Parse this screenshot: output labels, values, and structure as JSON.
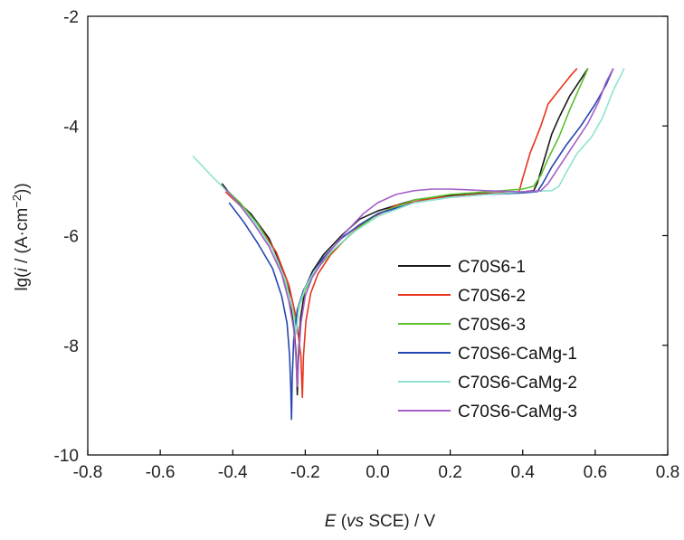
{
  "chart_data": {
    "type": "line",
    "title": "",
    "xlabel": {
      "italic": "E",
      "pre": " (",
      "italic2": "vs",
      "post": " SCE) / V"
    },
    "ylabel": {
      "pre": "lg(",
      "italic": "i",
      "mid": " / (A·cm",
      "sup": "−2",
      "post": "))"
    },
    "xlim": [
      -0.8,
      0.8
    ],
    "ylim": [
      -10,
      -2
    ],
    "xticks": [
      "-0.8",
      "-0.6",
      "-0.4",
      "-0.2",
      "0.0",
      "0.2",
      "0.4",
      "0.6",
      "0.8"
    ],
    "yticks": [
      "-10",
      "-8",
      "-6",
      "-4",
      "-2"
    ],
    "grid": false,
    "legend_position": "center-right",
    "series": [
      {
        "name": "C70S6-1",
        "color": "#1a1a1a",
        "points": [
          [
            -0.43,
            -5.05
          ],
          [
            -0.4,
            -5.3
          ],
          [
            -0.35,
            -5.6
          ],
          [
            -0.3,
            -6.05
          ],
          [
            -0.27,
            -6.5
          ],
          [
            -0.245,
            -7.0
          ],
          [
            -0.232,
            -7.6
          ],
          [
            -0.225,
            -8.2
          ],
          [
            -0.222,
            -8.9
          ],
          [
            -0.219,
            -8.2
          ],
          [
            -0.213,
            -7.5
          ],
          [
            -0.2,
            -6.95
          ],
          [
            -0.18,
            -6.65
          ],
          [
            -0.15,
            -6.35
          ],
          [
            -0.1,
            -6.0
          ],
          [
            -0.05,
            -5.7
          ],
          [
            0.0,
            -5.55
          ],
          [
            0.1,
            -5.35
          ],
          [
            0.2,
            -5.27
          ],
          [
            0.3,
            -5.23
          ],
          [
            0.4,
            -5.2
          ],
          [
            0.43,
            -5.18
          ],
          [
            0.44,
            -5.05
          ],
          [
            0.46,
            -4.6
          ],
          [
            0.48,
            -4.15
          ],
          [
            0.5,
            -3.85
          ],
          [
            0.53,
            -3.45
          ],
          [
            0.56,
            -3.15
          ],
          [
            0.58,
            -2.95
          ]
        ]
      },
      {
        "name": "C70S6-2",
        "color": "#e8341c",
        "points": [
          [
            -0.42,
            -5.2
          ],
          [
            -0.38,
            -5.45
          ],
          [
            -0.33,
            -5.8
          ],
          [
            -0.28,
            -6.3
          ],
          [
            -0.245,
            -6.9
          ],
          [
            -0.225,
            -7.5
          ],
          [
            -0.212,
            -8.2
          ],
          [
            -0.208,
            -8.95
          ],
          [
            -0.205,
            -8.2
          ],
          [
            -0.198,
            -7.55
          ],
          [
            -0.185,
            -7.05
          ],
          [
            -0.165,
            -6.7
          ],
          [
            -0.13,
            -6.35
          ],
          [
            -0.08,
            -6.0
          ],
          [
            -0.03,
            -5.72
          ],
          [
            0.05,
            -5.45
          ],
          [
            0.15,
            -5.32
          ],
          [
            0.25,
            -5.26
          ],
          [
            0.35,
            -5.22
          ],
          [
            0.39,
            -5.2
          ],
          [
            0.4,
            -4.95
          ],
          [
            0.42,
            -4.5
          ],
          [
            0.45,
            -4.0
          ],
          [
            0.47,
            -3.6
          ],
          [
            0.5,
            -3.35
          ],
          [
            0.53,
            -3.1
          ],
          [
            0.55,
            -2.95
          ]
        ]
      },
      {
        "name": "C70S6-3",
        "color": "#5cc02f",
        "points": [
          [
            -0.42,
            -5.15
          ],
          [
            -0.38,
            -5.4
          ],
          [
            -0.33,
            -5.8
          ],
          [
            -0.29,
            -6.25
          ],
          [
            -0.26,
            -6.75
          ],
          [
            -0.24,
            -7.2
          ],
          [
            -0.225,
            -7.6
          ],
          [
            -0.215,
            -7.25
          ],
          [
            -0.2,
            -7.0
          ],
          [
            -0.185,
            -6.8
          ],
          [
            -0.16,
            -6.55
          ],
          [
            -0.12,
            -6.25
          ],
          [
            -0.06,
            -5.9
          ],
          [
            0.0,
            -5.6
          ],
          [
            0.1,
            -5.35
          ],
          [
            0.2,
            -5.25
          ],
          [
            0.3,
            -5.2
          ],
          [
            0.4,
            -5.15
          ],
          [
            0.43,
            -5.1
          ],
          [
            0.45,
            -4.9
          ],
          [
            0.47,
            -4.6
          ],
          [
            0.5,
            -4.2
          ],
          [
            0.53,
            -3.7
          ],
          [
            0.56,
            -3.25
          ],
          [
            0.58,
            -2.95
          ]
        ]
      },
      {
        "name": "C70S6-CaMg-1",
        "color": "#2546b0",
        "points": [
          [
            -0.41,
            -5.4
          ],
          [
            -0.37,
            -5.75
          ],
          [
            -0.33,
            -6.15
          ],
          [
            -0.29,
            -6.6
          ],
          [
            -0.265,
            -7.1
          ],
          [
            -0.25,
            -7.6
          ],
          [
            -0.243,
            -8.2
          ],
          [
            -0.24,
            -8.8
          ],
          [
            -0.238,
            -9.35
          ],
          [
            -0.236,
            -8.6
          ],
          [
            -0.232,
            -7.9
          ],
          [
            -0.222,
            -7.35
          ],
          [
            -0.205,
            -7.0
          ],
          [
            -0.185,
            -6.75
          ],
          [
            -0.15,
            -6.4
          ],
          [
            -0.1,
            -6.05
          ],
          [
            -0.05,
            -5.8
          ],
          [
            0.0,
            -5.6
          ],
          [
            0.1,
            -5.4
          ],
          [
            0.2,
            -5.3
          ],
          [
            0.3,
            -5.25
          ],
          [
            0.4,
            -5.22
          ],
          [
            0.44,
            -5.2
          ],
          [
            0.455,
            -5.05
          ],
          [
            0.48,
            -4.75
          ],
          [
            0.52,
            -4.35
          ],
          [
            0.56,
            -4.0
          ],
          [
            0.6,
            -3.6
          ],
          [
            0.63,
            -3.25
          ],
          [
            0.65,
            -2.95
          ]
        ]
      },
      {
        "name": "C70S6-CaMg-2",
        "color": "#8ee4cf",
        "points": [
          [
            -0.51,
            -4.55
          ],
          [
            -0.46,
            -4.9
          ],
          [
            -0.4,
            -5.3
          ],
          [
            -0.34,
            -5.75
          ],
          [
            -0.29,
            -6.25
          ],
          [
            -0.255,
            -6.8
          ],
          [
            -0.235,
            -7.35
          ],
          [
            -0.225,
            -7.8
          ],
          [
            -0.218,
            -7.3
          ],
          [
            -0.2,
            -6.95
          ],
          [
            -0.175,
            -6.65
          ],
          [
            -0.13,
            -6.3
          ],
          [
            -0.07,
            -5.95
          ],
          [
            0.0,
            -5.65
          ],
          [
            0.1,
            -5.4
          ],
          [
            0.2,
            -5.3
          ],
          [
            0.3,
            -5.25
          ],
          [
            0.4,
            -5.2
          ],
          [
            0.48,
            -5.18
          ],
          [
            0.5,
            -5.1
          ],
          [
            0.52,
            -4.85
          ],
          [
            0.55,
            -4.5
          ],
          [
            0.59,
            -4.2
          ],
          [
            0.62,
            -3.85
          ],
          [
            0.65,
            -3.35
          ],
          [
            0.68,
            -2.95
          ]
        ]
      },
      {
        "name": "C70S6-CaMg-3",
        "color": "#a460c8",
        "points": [
          [
            -0.42,
            -5.15
          ],
          [
            -0.38,
            -5.45
          ],
          [
            -0.34,
            -5.8
          ],
          [
            -0.3,
            -6.2
          ],
          [
            -0.265,
            -6.7
          ],
          [
            -0.245,
            -7.2
          ],
          [
            -0.232,
            -7.7
          ],
          [
            -0.226,
            -8.2
          ],
          [
            -0.222,
            -8.75
          ],
          [
            -0.218,
            -8.2
          ],
          [
            -0.212,
            -7.6
          ],
          [
            -0.2,
            -7.1
          ],
          [
            -0.18,
            -6.75
          ],
          [
            -0.14,
            -6.35
          ],
          [
            -0.09,
            -5.95
          ],
          [
            -0.04,
            -5.6
          ],
          [
            0.0,
            -5.4
          ],
          [
            0.05,
            -5.25
          ],
          [
            0.1,
            -5.18
          ],
          [
            0.15,
            -5.15
          ],
          [
            0.2,
            -5.15
          ],
          [
            0.3,
            -5.18
          ],
          [
            0.4,
            -5.2
          ],
          [
            0.45,
            -5.18
          ],
          [
            0.47,
            -5.05
          ],
          [
            0.5,
            -4.75
          ],
          [
            0.54,
            -4.35
          ],
          [
            0.58,
            -3.95
          ],
          [
            0.61,
            -3.55
          ],
          [
            0.63,
            -3.2
          ],
          [
            0.65,
            -2.95
          ]
        ]
      }
    ]
  }
}
